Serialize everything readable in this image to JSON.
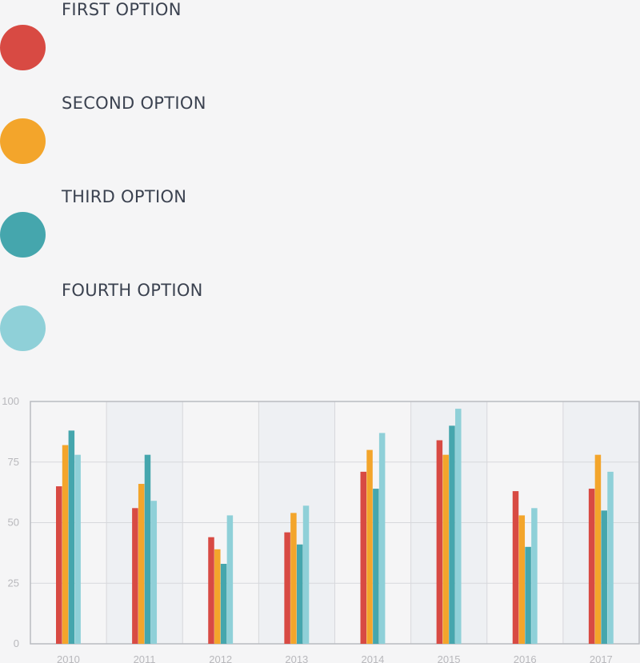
{
  "legend": [
    {
      "label": "FIRST OPTION",
      "color": "#d84a43"
    },
    {
      "label": "SECOND OPTION",
      "color": "#f3a52b"
    },
    {
      "label": "THIRD OPTION",
      "color": "#45a6ad"
    },
    {
      "label": "FOURTH OPTION",
      "color": "#8fd0d8"
    }
  ],
  "chart_data": {
    "type": "bar",
    "categories": [
      "2010",
      "2011",
      "2012",
      "2013",
      "2014",
      "2015",
      "2016",
      "2017"
    ],
    "series": [
      {
        "name": "FIRST OPTION",
        "color": "#d84a43",
        "values": [
          65,
          56,
          44,
          46,
          71,
          84,
          63,
          64
        ]
      },
      {
        "name": "SECOND OPTION",
        "color": "#f3a52b",
        "values": [
          82,
          66,
          39,
          54,
          80,
          78,
          53,
          78
        ]
      },
      {
        "name": "THIRD OPTION",
        "color": "#45a6ad",
        "values": [
          88,
          78,
          33,
          41,
          64,
          90,
          40,
          55
        ]
      },
      {
        "name": "FOURTH OPTION",
        "color": "#8fd0d8",
        "values": [
          78,
          59,
          53,
          57,
          87,
          97,
          56,
          71
        ]
      }
    ],
    "yticks": [
      "0",
      "25",
      "50",
      "75",
      "100"
    ],
    "ylim": [
      0,
      100
    ],
    "grid": true,
    "legend_position": "top-left"
  }
}
